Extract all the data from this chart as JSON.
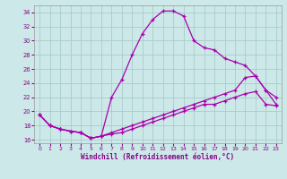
{
  "xlabel": "Windchill (Refroidissement éolien,°C)",
  "bg_color": "#cce8e8",
  "grid_color": "#aacccc",
  "line_color": "#aa00aa",
  "xlim": [
    -0.5,
    23.5
  ],
  "ylim": [
    15.5,
    35.0
  ],
  "yticks": [
    16,
    18,
    20,
    22,
    24,
    26,
    28,
    30,
    32,
    34
  ],
  "xticks": [
    0,
    1,
    2,
    3,
    4,
    5,
    6,
    7,
    8,
    9,
    10,
    11,
    12,
    13,
    14,
    15,
    16,
    17,
    18,
    19,
    20,
    21,
    22,
    23
  ],
  "line1_x": [
    0,
    1,
    2,
    3,
    4,
    5,
    6,
    7,
    8,
    9,
    10,
    11,
    12,
    13,
    14,
    15,
    16,
    17,
    18,
    19,
    20,
    21,
    22,
    23
  ],
  "line1_y": [
    19.5,
    18.0,
    17.5,
    17.2,
    17.0,
    16.2,
    16.5,
    22.0,
    24.5,
    28.0,
    31.0,
    33.0,
    34.2,
    34.2,
    33.5,
    30.0,
    29.0,
    28.7,
    27.5,
    27.0,
    26.5,
    25.0,
    23.0,
    22.0
  ],
  "line2_x": [
    0,
    1,
    2,
    3,
    4,
    5,
    6,
    7,
    8,
    9,
    10,
    11,
    12,
    13,
    14,
    15,
    16,
    17,
    18,
    19,
    20,
    21,
    22,
    23
  ],
  "line2_y": [
    19.5,
    18.0,
    17.5,
    17.2,
    17.0,
    16.2,
    16.5,
    17.0,
    17.5,
    18.0,
    18.5,
    19.0,
    19.5,
    20.0,
    20.5,
    21.0,
    21.5,
    22.0,
    22.5,
    23.0,
    24.8,
    25.0,
    23.0,
    21.0
  ],
  "line3_x": [
    0,
    1,
    2,
    3,
    4,
    5,
    6,
    7,
    8,
    9,
    10,
    11,
    12,
    13,
    14,
    15,
    16,
    17,
    18,
    19,
    20,
    21,
    22,
    23
  ],
  "line3_y": [
    19.5,
    18.0,
    17.5,
    17.2,
    17.0,
    16.2,
    16.5,
    16.8,
    17.0,
    17.5,
    18.0,
    18.5,
    19.0,
    19.5,
    20.0,
    20.5,
    21.0,
    21.0,
    21.5,
    22.0,
    22.5,
    22.8,
    21.0,
    20.8
  ]
}
